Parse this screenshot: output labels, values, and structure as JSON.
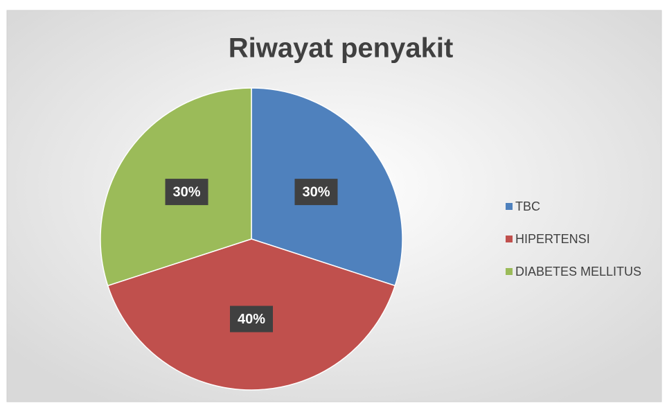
{
  "chart_data": {
    "type": "pie",
    "title": "Riwayat penyakit",
    "categories": [
      "TBC",
      "HIPERTENSI",
      "DIABETES MELLITUS"
    ],
    "values": [
      30,
      40,
      30
    ],
    "value_labels": [
      "30%",
      "40%",
      "30%"
    ],
    "colors": [
      "#4f81bd",
      "#c0504d",
      "#9bbb59"
    ],
    "legend": "right"
  }
}
